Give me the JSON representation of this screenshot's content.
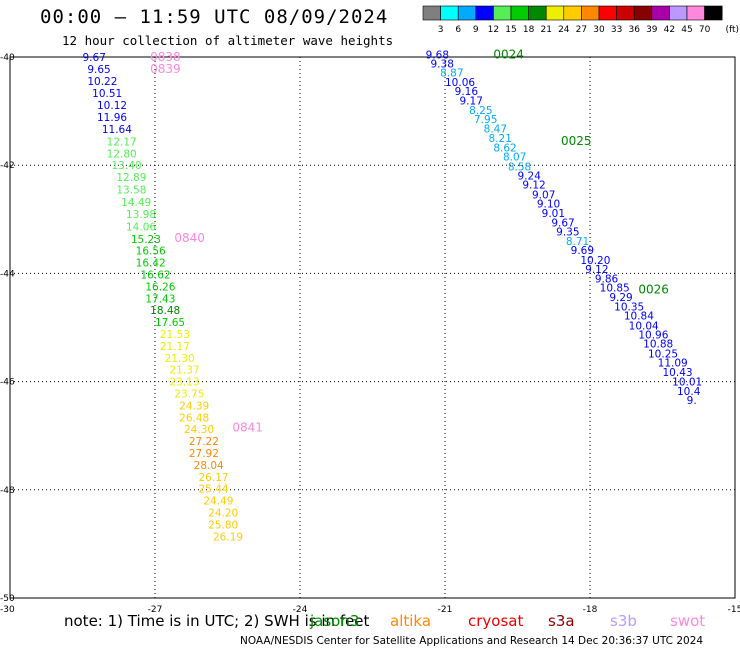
{
  "header": {
    "title": "00:00 – 11:59 UTC 08/09/2024",
    "subtitle": "12 hour collection of altimeter wave heights"
  },
  "colorbar": {
    "unit": "(ft)",
    "ticks": [
      "3",
      "6",
      "9",
      "12",
      "15",
      "18",
      "21",
      "24",
      "27",
      "30",
      "33",
      "36",
      "39",
      "42",
      "45",
      "70"
    ],
    "colors": [
      "#7f7f7f",
      "#00ffff",
      "#00aaff",
      "#0000ff",
      "#55ee55",
      "#00cc00",
      "#008800",
      "#eeee00",
      "#ffcc00",
      "#ff8800",
      "#ff0000",
      "#cc0000",
      "#880000",
      "#aa00aa",
      "#bb99ff",
      "#ff88dd",
      "#000000"
    ]
  },
  "footer": {
    "note": "note:  1) Time is in UTC; 2) SWH is in feet",
    "credit": "NOAA/NESDIS Center for Satellite Applications and Research    14 Dec 20:36:37 UTC 2024",
    "satellites": [
      {
        "name": "jason3",
        "color": "#008800"
      },
      {
        "name": "altika",
        "color": "#ff8800"
      },
      {
        "name": "cryosat",
        "color": "#ee0000"
      },
      {
        "name": "s3a",
        "color": "#880000"
      },
      {
        "name": "s3b",
        "color": "#bb99ff"
      },
      {
        "name": "swot",
        "color": "#ff88dd"
      }
    ]
  },
  "chart_data": {
    "type": "scatter",
    "xlim": [
      -30,
      -15
    ],
    "ylim": [
      -50,
      -40
    ],
    "x_ticks": [
      -27,
      -24,
      -21,
      -18,
      -15
    ],
    "y_ticks": [
      -40,
      -42,
      -44,
      -46,
      -48,
      -50
    ],
    "corner_tick_labels": [
      "-30"
    ],
    "grid": true,
    "tracks": [
      {
        "name": "left track",
        "time_labels": [
          {
            "text": "0838",
            "lon": -27.1,
            "lat": -40.0
          },
          {
            "text": "0839",
            "lon": -27.1,
            "lat": -40.22
          },
          {
            "text": "0840",
            "lon": -26.6,
            "lat": -43.35
          },
          {
            "text": "0841",
            "lon": -25.4,
            "lat": -46.85
          }
        ],
        "points": [
          {
            "v": "9.67",
            "lon": -28.5,
            "lat": -40.0
          },
          {
            "v": "9.65",
            "lon": -28.4,
            "lat": -40.22
          },
          {
            "v": "10.22",
            "lon": -28.4,
            "lat": -40.44
          },
          {
            "v": "10.51",
            "lon": -28.3,
            "lat": -40.67
          },
          {
            "v": "10.12",
            "lon": -28.2,
            "lat": -40.89
          },
          {
            "v": "11.96",
            "lon": -28.2,
            "lat": -41.11
          },
          {
            "v": "11.64",
            "lon": -28.1,
            "lat": -41.33
          },
          {
            "v": "12.17",
            "lon": -28.0,
            "lat": -41.56
          },
          {
            "v": "12.80",
            "lon": -28.0,
            "lat": -41.78
          },
          {
            "v": "13.40",
            "lon": -27.9,
            "lat": -42.0
          },
          {
            "v": "12.89",
            "lon": -27.8,
            "lat": -42.22
          },
          {
            "v": "13.58",
            "lon": -27.8,
            "lat": -42.45
          },
          {
            "v": "14.49",
            "lon": -27.7,
            "lat": -42.68
          },
          {
            "v": "13.98",
            "lon": -27.6,
            "lat": -42.9
          },
          {
            "v": "14.06",
            "lon": -27.6,
            "lat": -43.13
          },
          {
            "v": "15.23",
            "lon": -27.5,
            "lat": -43.36
          },
          {
            "v": "16.56",
            "lon": -27.4,
            "lat": -43.58
          },
          {
            "v": "16.42",
            "lon": -27.4,
            "lat": -43.8
          },
          {
            "v": "16.62",
            "lon": -27.3,
            "lat": -44.02
          },
          {
            "v": "16.26",
            "lon": -27.2,
            "lat": -44.24
          },
          {
            "v": "17.43",
            "lon": -27.2,
            "lat": -44.46
          },
          {
            "v": "18.48",
            "lon": -27.1,
            "lat": -44.68
          },
          {
            "v": "17.65",
            "lon": -27.0,
            "lat": -44.9
          },
          {
            "v": "21.53",
            "lon": -26.9,
            "lat": -45.12
          },
          {
            "v": "21.17",
            "lon": -26.9,
            "lat": -45.34
          },
          {
            "v": "21.30",
            "lon": -26.8,
            "lat": -45.56
          },
          {
            "v": "21.37",
            "lon": -26.7,
            "lat": -45.78
          },
          {
            "v": "23.13",
            "lon": -26.7,
            "lat": -46.0
          },
          {
            "v": "23.75",
            "lon": -26.6,
            "lat": -46.22
          },
          {
            "v": "24.39",
            "lon": -26.5,
            "lat": -46.44
          },
          {
            "v": "26.48",
            "lon": -26.5,
            "lat": -46.66
          },
          {
            "v": "24.30",
            "lon": -26.4,
            "lat": -46.88
          },
          {
            "v": "27.22",
            "lon": -26.3,
            "lat": -47.1
          },
          {
            "v": "27.92",
            "lon": -26.3,
            "lat": -47.32
          },
          {
            "v": "28.04",
            "lon": -26.2,
            "lat": -47.54
          },
          {
            "v": "26.17",
            "lon": -26.1,
            "lat": -47.76
          },
          {
            "v": "25.44",
            "lon": -26.1,
            "lat": -47.98
          },
          {
            "v": "24.49",
            "lon": -26.0,
            "lat": -48.2
          },
          {
            "v": "24.20",
            "lon": -25.9,
            "lat": -48.42
          },
          {
            "v": "25.80",
            "lon": -25.9,
            "lat": -48.64
          },
          {
            "v": "26.19",
            "lon": -25.8,
            "lat": -48.86
          }
        ]
      },
      {
        "name": "right track",
        "time_labels": [
          {
            "text": "0024",
            "lon": -20.0,
            "lat": -39.95
          },
          {
            "text": "0025",
            "lon": -18.6,
            "lat": -41.55
          },
          {
            "text": "0026",
            "lon": -17.0,
            "lat": -44.3
          }
        ],
        "points": [
          {
            "v": "9.68",
            "lon": -21.4,
            "lat": -39.95
          },
          {
            "v": "9.38",
            "lon": -21.3,
            "lat": -40.12
          },
          {
            "v": "8.87",
            "lon": -21.1,
            "lat": -40.29
          },
          {
            "v": "10.06",
            "lon": -21.0,
            "lat": -40.46
          },
          {
            "v": "9.16",
            "lon": -20.8,
            "lat": -40.63
          },
          {
            "v": "9.17",
            "lon": -20.7,
            "lat": -40.8
          },
          {
            "v": "8.25",
            "lon": -20.5,
            "lat": -40.98
          },
          {
            "v": "7.95",
            "lon": -20.4,
            "lat": -41.15
          },
          {
            "v": "8.47",
            "lon": -20.2,
            "lat": -41.32
          },
          {
            "v": "8.21",
            "lon": -20.1,
            "lat": -41.5
          },
          {
            "v": "8.62",
            "lon": -20.0,
            "lat": -41.67
          },
          {
            "v": "8.07",
            "lon": -19.8,
            "lat": -41.84
          },
          {
            "v": "8.58",
            "lon": -19.7,
            "lat": -42.02
          },
          {
            "v": "9.24",
            "lon": -19.5,
            "lat": -42.19
          },
          {
            "v": "9.12",
            "lon": -19.4,
            "lat": -42.36
          },
          {
            "v": "9.07",
            "lon": -19.2,
            "lat": -42.54
          },
          {
            "v": "9.10",
            "lon": -19.1,
            "lat": -42.71
          },
          {
            "v": "9.01",
            "lon": -19.0,
            "lat": -42.88
          },
          {
            "v": "9.67",
            "lon": -18.8,
            "lat": -43.06
          },
          {
            "v": "9.35",
            "lon": -18.7,
            "lat": -43.23
          },
          {
            "v": "8.71",
            "lon": -18.5,
            "lat": -43.4
          },
          {
            "v": "9.69",
            "lon": -18.4,
            "lat": -43.57
          },
          {
            "v": "10.20",
            "lon": -18.2,
            "lat": -43.75
          },
          {
            "v": "9.12",
            "lon": -18.1,
            "lat": -43.92
          },
          {
            "v": "9.86",
            "lon": -17.9,
            "lat": -44.09
          },
          {
            "v": "10.85",
            "lon": -17.8,
            "lat": -44.26
          },
          {
            "v": "9.29",
            "lon": -17.6,
            "lat": -44.44
          },
          {
            "v": "10.35",
            "lon": -17.5,
            "lat": -44.61
          },
          {
            "v": "10.84",
            "lon": -17.3,
            "lat": -44.78
          },
          {
            "v": "10.04",
            "lon": -17.2,
            "lat": -44.96
          },
          {
            "v": "10.96",
            "lon": -17.0,
            "lat": -45.13
          },
          {
            "v": "10.88",
            "lon": -16.9,
            "lat": -45.3
          },
          {
            "v": "10.25",
            "lon": -16.8,
            "lat": -45.48
          },
          {
            "v": "11.09",
            "lon": -16.6,
            "lat": -45.65
          },
          {
            "v": "10.43",
            "lon": -16.5,
            "lat": -45.82
          },
          {
            "v": "10.01",
            "lon": -16.3,
            "lat": -46.0
          },
          {
            "v": "10.4",
            "lon": -16.2,
            "lat": -46.17
          },
          {
            "v": "9.",
            "lon": -16.0,
            "lat": -46.34
          }
        ]
      }
    ]
  }
}
